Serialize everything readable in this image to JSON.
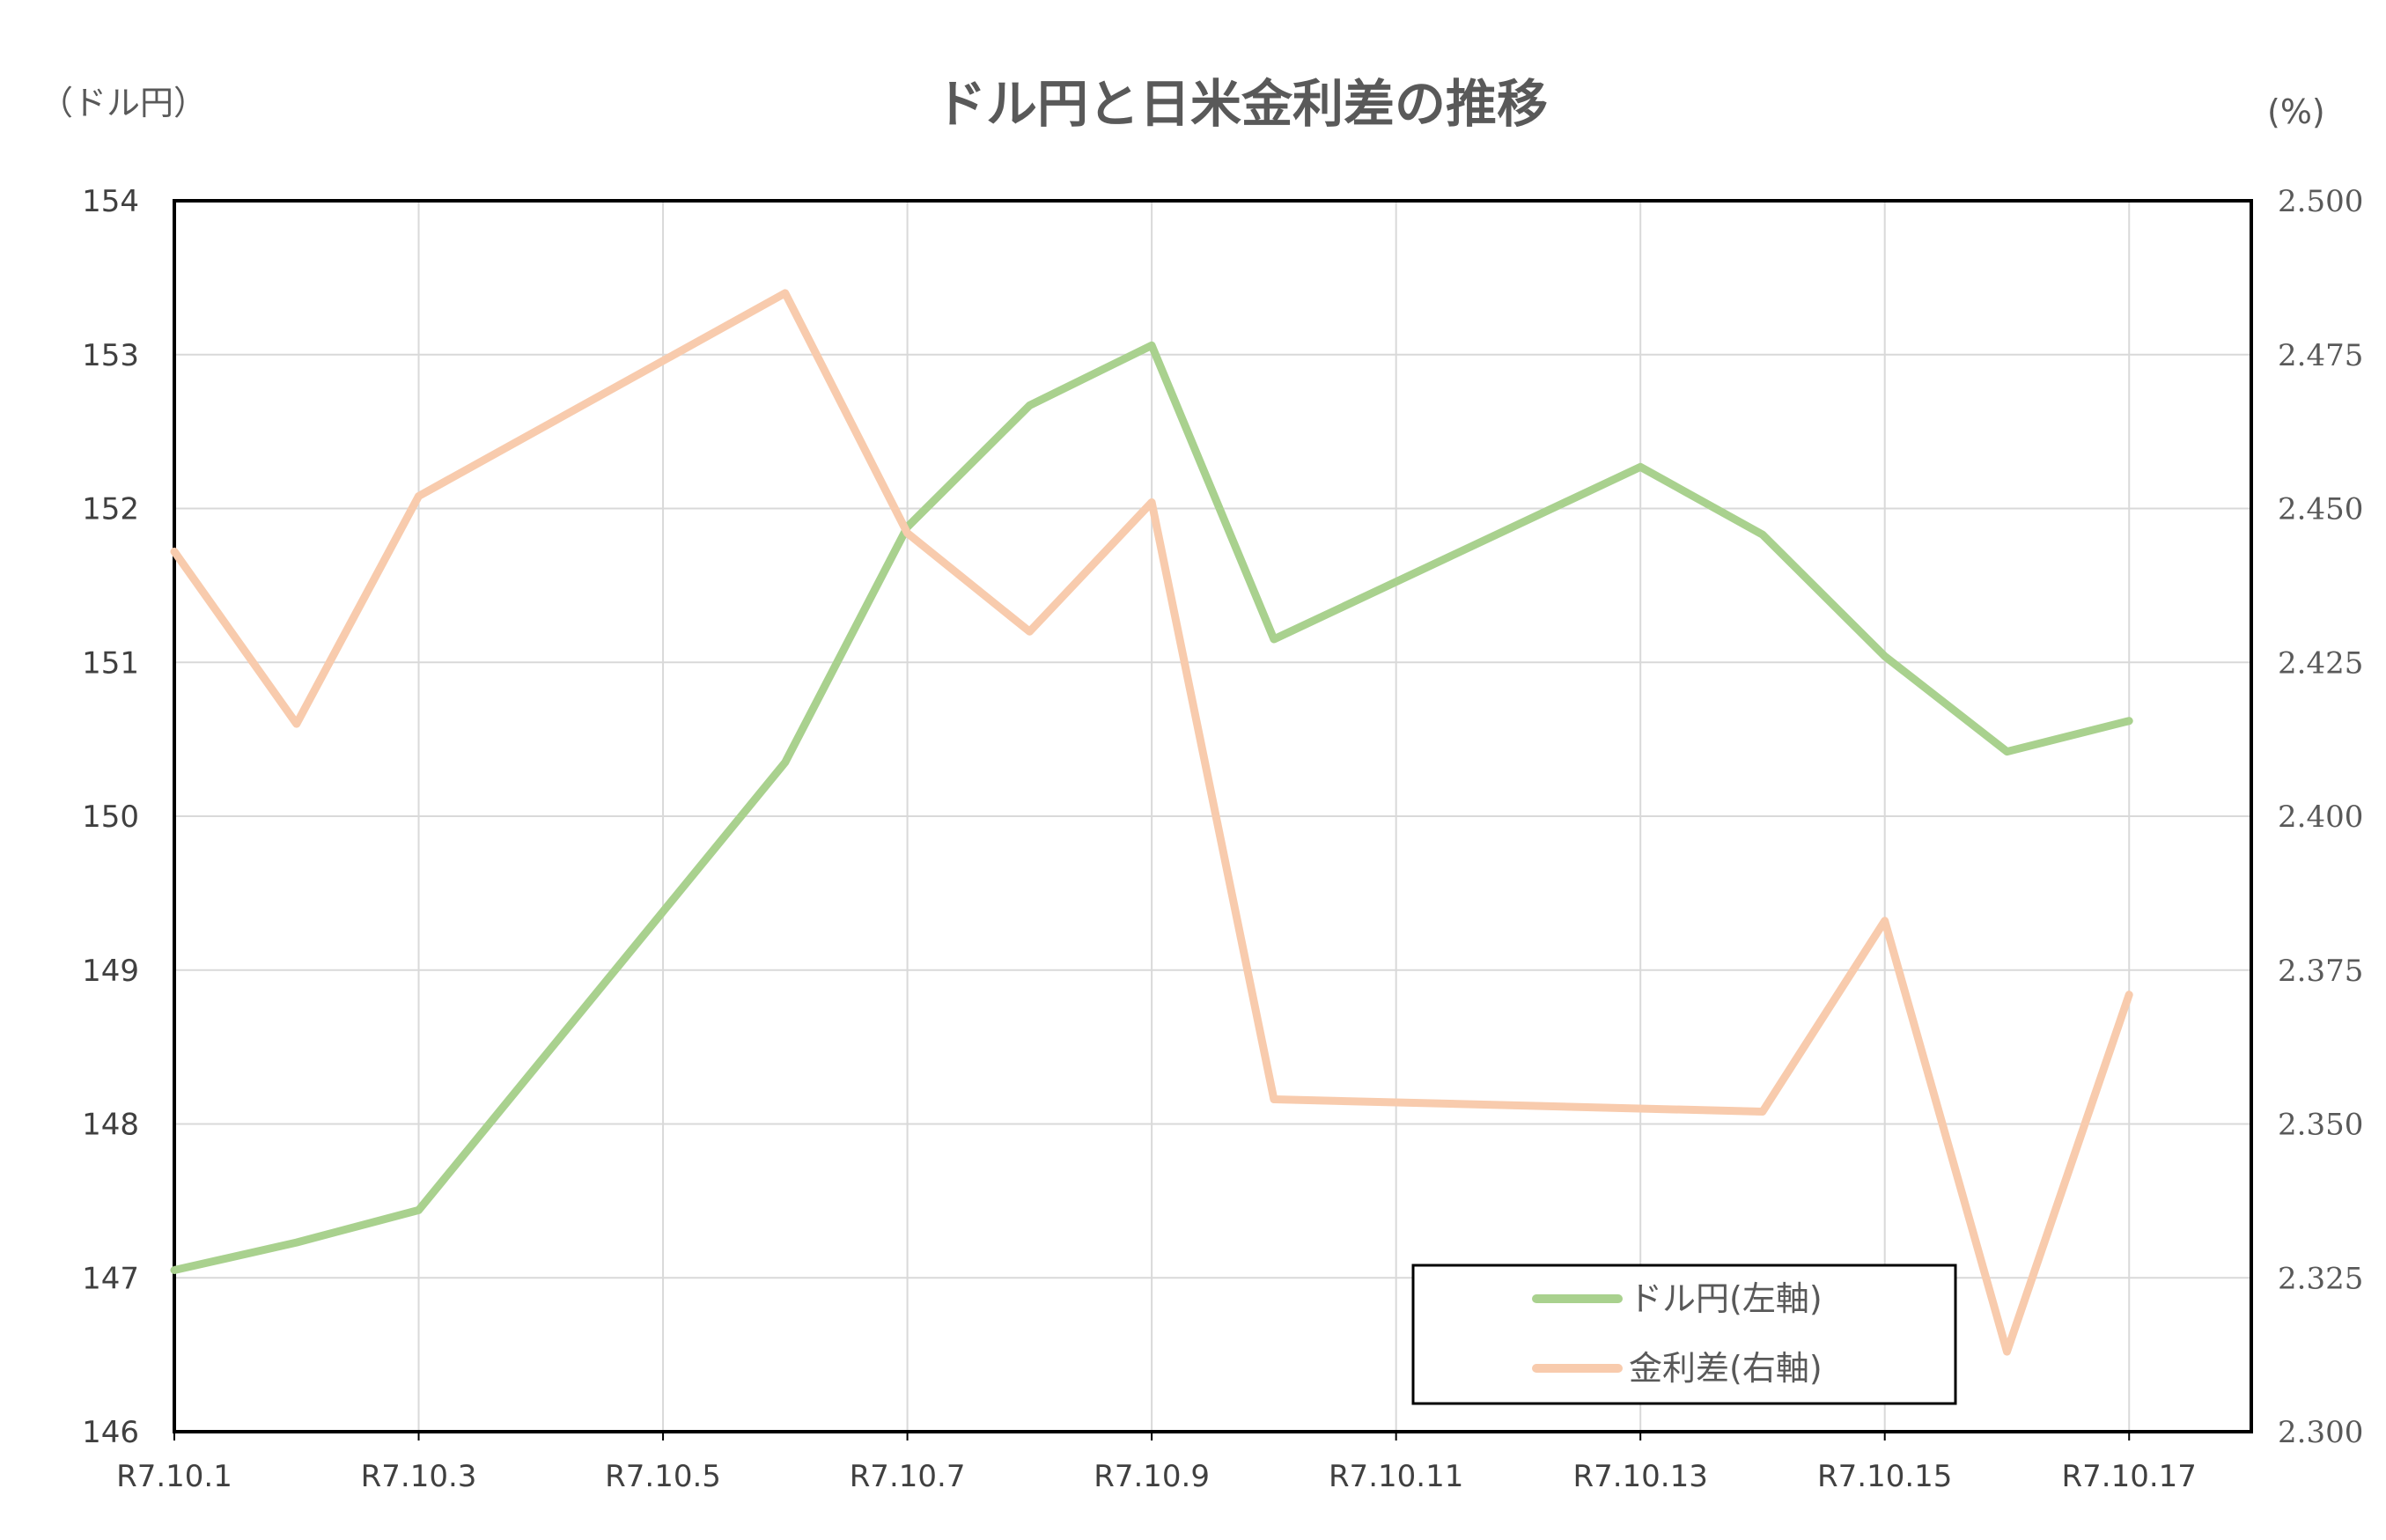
{
  "chart_data": {
    "type": "line",
    "title": "ドル円と日米金利差の推移",
    "left_axis": {
      "unit_label": "（ドル円）",
      "ylim": [
        146,
        154
      ],
      "ticks": [
        146,
        147,
        148,
        149,
        150,
        151,
        152,
        153,
        154
      ],
      "tick_labels": [
        "146",
        "147",
        "148",
        "149",
        "150",
        "151",
        "152",
        "153",
        "154"
      ]
    },
    "right_axis": {
      "unit_label": "(%)",
      "ylim": [
        2.3,
        2.5
      ],
      "ticks": [
        2.3,
        2.325,
        2.35,
        2.375,
        2.4,
        2.425,
        2.45,
        2.475,
        2.5
      ],
      "tick_labels": [
        "2.300",
        "2.325",
        "2.350",
        "2.375",
        "2.400",
        "2.425",
        "2.450",
        "2.475",
        "2.500"
      ]
    },
    "x_ticks": [
      "R7.10.1",
      "R7.10.3",
      "R7.10.5",
      "R7.10.7",
      "R7.10.9",
      "R7.10.11",
      "R7.10.13",
      "R7.10.15",
      "R7.10.17"
    ],
    "x_day_range": [
      1,
      18
    ],
    "grid": true,
    "legend": {
      "placement": "bottom-right"
    },
    "series": [
      {
        "name": "ドル円(左軸)",
        "axis": "left",
        "color": "#a9d18e",
        "x": [
          "R7.10.1",
          "R7.10.2",
          "R7.10.3",
          "R7.10.6",
          "R7.10.7",
          "R7.10.8",
          "R7.10.9",
          "R7.10.10",
          "R7.10.13",
          "R7.10.14",
          "R7.10.15",
          "R7.10.16",
          "R7.10.17"
        ],
        "values": [
          147.05,
          147.23,
          147.44,
          150.35,
          151.88,
          152.67,
          153.06,
          151.15,
          152.27,
          151.83,
          151.04,
          150.42,
          150.62
        ]
      },
      {
        "name": "金利差(右軸)",
        "axis": "right",
        "color": "#f8cbad",
        "x": [
          "R7.10.1",
          "R7.10.2",
          "R7.10.3",
          "R7.10.6",
          "R7.10.7",
          "R7.10.8",
          "R7.10.9",
          "R7.10.10",
          "R7.10.14",
          "R7.10.15",
          "R7.10.16",
          "R7.10.17"
        ],
        "values": [
          2.443,
          2.415,
          2.452,
          2.485,
          2.446,
          2.43,
          2.451,
          2.354,
          2.352,
          2.383,
          2.313,
          2.371
        ]
      }
    ]
  }
}
